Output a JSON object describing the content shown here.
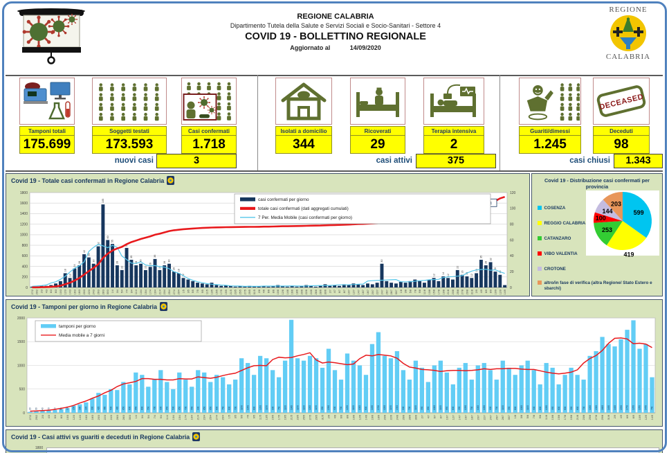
{
  "header": {
    "org": "REGIONE CALABRIA",
    "dept": "Dipartimento Tutela della Salute e Servizi Sociali e Socio-Sanitari - Settore 4",
    "title": "COVID 19 - BOLLETTINO REGIONALE",
    "updated_label": "Aggiornato al",
    "updated_date": "14/09/2020",
    "logo_top": "REGIONE",
    "logo_bottom": "CALABRIA"
  },
  "stats": {
    "items": [
      {
        "label": "Tamponi totali",
        "value": "175.699",
        "icon": "lab-equipment-icon"
      },
      {
        "label": "Soggetti testati",
        "value": "173.593",
        "icon": "crowd-icon"
      },
      {
        "label": "Casi confermati",
        "value": "1.718",
        "icon": "infected-person-icon"
      },
      {
        "label": "Isolati a domicilio",
        "value": "344",
        "icon": "house-icon"
      },
      {
        "label": "Ricoverati",
        "value": "29",
        "icon": "hospital-bed-icon"
      },
      {
        "label": "Terapia intensiva",
        "value": "2",
        "icon": "icu-bed-icon"
      },
      {
        "label": "Guariti/dimessi",
        "value": "1.245",
        "icon": "recovered-person-icon"
      },
      {
        "label": "Deceduti",
        "value": "98",
        "icon": "deceased-stamp-icon"
      }
    ],
    "deceased_stamp_text": "DECEASED",
    "summary": {
      "nuovi_label": "nuovi casi",
      "nuovi_value": "3",
      "attivi_label": "casi attivi",
      "attivi_value": "375",
      "chiusi_label": "casi chiusi",
      "chiusi_value": "1.343"
    }
  },
  "chart1": {
    "title": "Covid 19 - Totale casi confermati in Regione Calabria",
    "legend": [
      {
        "label": "casi confermati per giorno",
        "type": "bar",
        "color": "#17375e"
      },
      {
        "label": "totale casi confermati (dati aggregati cumulati)",
        "type": "thick",
        "color": "#e8191c"
      },
      {
        "label": "7 Per. Media Mobile (casi confermati per giorno)",
        "type": "thin",
        "color": "#56c7ea"
      }
    ],
    "end_label": "1718"
  },
  "pie": {
    "title_line1": "Covid 19 - Distribuzione casi confermati per",
    "title_line2": "provincia",
    "legend": [
      {
        "label": "COSENZA",
        "color": "#00c5f0"
      },
      {
        "label": "REGGIO CALABRIA",
        "color": "#ffff00"
      },
      {
        "label": "CATANZARO",
        "color": "#33cc33"
      },
      {
        "label": "VIBO VALENTIA",
        "color": "#ff0000"
      },
      {
        "label": "CROTONE",
        "color": "#c4bce0"
      },
      {
        "label": "altro/in fase di verifica (altra Regione/ Stato Estero e sbarchi)",
        "color": "#e8965a"
      }
    ]
  },
  "chart2": {
    "title": "Covid 19 - Tamponi per giorno in Regione Calabria",
    "legend": [
      {
        "label": "tamponi per giorno",
        "type": "bar",
        "color": "#62cdf5"
      },
      {
        "label": "Media mobile a 7 giorni",
        "type": "thin",
        "color": "#e8191c"
      }
    ]
  },
  "chart3": {
    "title": "Covid 19 - Casi attivi vs guariti e deceduti in Regione Calabria",
    "visible_y_tick": "1800"
  },
  "chart_data": [
    {
      "id": "casi-confermati-combo",
      "type": "bar",
      "title": "Covid 19 - Totale casi confermati in Regione Calabria",
      "left_ylim": [
        0,
        1800
      ],
      "left_step": 200,
      "right_ylim": [
        0,
        120
      ],
      "right_step": 20,
      "grid": true,
      "legend_position": "top-center",
      "end_label": "1718",
      "ma_window": 7,
      "x": [
        "27/2",
        "29/2",
        "2/3",
        "4/3",
        "6/3",
        "8/3",
        "10/3",
        "12/3",
        "14/3",
        "16/3",
        "18/3",
        "20/3",
        "22/3",
        "24/3",
        "26/3",
        "28/3",
        "30/3",
        "1/4",
        "3/4",
        "5/4",
        "7/4",
        "9/4",
        "11/4",
        "13/4",
        "15/4",
        "17/4",
        "19/4",
        "21/4",
        "23/4",
        "25/4",
        "27/4",
        "29/4",
        "1/5",
        "3/5",
        "5/5",
        "7/5",
        "9/5",
        "11/5",
        "13/5",
        "15/5",
        "17/5",
        "19/5",
        "21/5",
        "23/5",
        "25/5",
        "27/5",
        "29/5",
        "31/5",
        "2/6",
        "4/6",
        "6/6",
        "8/6",
        "10/6",
        "12/6",
        "14/6",
        "16/6",
        "18/6",
        "20/6",
        "22/6",
        "24/6",
        "26/6",
        "28/6",
        "30/6",
        "2/7",
        "4/7",
        "6/7",
        "8/7",
        "10/7",
        "12/7",
        "14/7",
        "16/7",
        "18/7",
        "20/7",
        "22/7",
        "24/7",
        "26/7",
        "28/7",
        "30/7",
        "1/8",
        "3/8",
        "5/8",
        "7/8",
        "9/8",
        "11/8",
        "13/8",
        "15/8",
        "17/8",
        "19/8",
        "21/8",
        "23/8",
        "25/8",
        "27/8",
        "29/8",
        "31/8",
        "2/9",
        "4/9",
        "6/9",
        "8/9",
        "10/9",
        "12/9",
        "14/9"
      ],
      "series": [
        {
          "name": "casi confermati per giorno",
          "plot": "bar",
          "axis": "right",
          "values": [
            1,
            1,
            2,
            2,
            3,
            5,
            8,
            18,
            12,
            24,
            28,
            42,
            38,
            30,
            52,
            105,
            60,
            55,
            28,
            22,
            50,
            35,
            28,
            30,
            22,
            26,
            36,
            22,
            28,
            30,
            20,
            18,
            12,
            10,
            8,
            6,
            5,
            4,
            6,
            3,
            2,
            3,
            2,
            1,
            2,
            1,
            2,
            1,
            1,
            2,
            1,
            2,
            3,
            2,
            1,
            2,
            1,
            2,
            3,
            2,
            1,
            2,
            4,
            2,
            3,
            2,
            4,
            3,
            5,
            4,
            3,
            5,
            4,
            6,
            30,
            8,
            6,
            5,
            7,
            6,
            8,
            10,
            8,
            6,
            10,
            12,
            8,
            14,
            12,
            10,
            22,
            16,
            14,
            12,
            18,
            35,
            28,
            32,
            20,
            16,
            3
          ]
        },
        {
          "name": "totale casi confermati (dati aggregati cumulati)",
          "plot": "line",
          "axis": "left",
          "values": [
            2,
            3,
            5,
            8,
            12,
            20,
            33,
            60,
            90,
            130,
            180,
            245,
            310,
            370,
            440,
            560,
            640,
            700,
            740,
            770,
            820,
            860,
            890,
            920,
            945,
            970,
            1000,
            1020,
            1045,
            1070,
            1085,
            1095,
            1105,
            1112,
            1118,
            1124,
            1128,
            1132,
            1136,
            1139,
            1141,
            1143,
            1145,
            1146,
            1147,
            1148,
            1149,
            1150,
            1151,
            1153,
            1154,
            1156,
            1159,
            1161,
            1162,
            1164,
            1165,
            1167,
            1170,
            1172,
            1173,
            1175,
            1179,
            1181,
            1184,
            1186,
            1190,
            1193,
            1198,
            1202,
            1205,
            1210,
            1214,
            1220,
            1250,
            1258,
            1264,
            1269,
            1276,
            1282,
            1290,
            1300,
            1308,
            1314,
            1324,
            1336,
            1344,
            1358,
            1370,
            1380,
            1402,
            1418,
            1432,
            1444,
            1462,
            1497,
            1525,
            1557,
            1640,
            1690,
            1718
          ]
        },
        {
          "name": "7 Per. Media Mobile (casi confermati per giorno)",
          "plot": "line",
          "axis": "right",
          "derived": "moving-average-of-daily"
        }
      ]
    },
    {
      "id": "provincia-pie",
      "type": "pie",
      "title": "Covid 19 - Distribuzione casi confermati per provincia",
      "labels": [
        "COSENZA",
        "REGGIO CALABRIA",
        "CATANZARO",
        "VIBO VALENTIA",
        "CROTONE",
        "altro/in fase di verifica (altra Regione/ Stato Estero e sbarchi)"
      ],
      "values": [
        599,
        419,
        253,
        100,
        144,
        203
      ],
      "colors": [
        "#00c5f0",
        "#ffff00",
        "#33cc33",
        "#ff0000",
        "#c4bce0",
        "#e8965a"
      ],
      "total": 1718
    },
    {
      "id": "tamponi-per-giorno",
      "type": "bar",
      "title": "Covid 19 - Tamponi per giorno in Regione Calabria",
      "ylim": [
        0,
        2000
      ],
      "ystep": 500,
      "grid": true,
      "legend_position": "top-left",
      "ma_window": 7,
      "x": [
        "27/2",
        "29/2",
        "2/3",
        "4/3",
        "6/3",
        "8/3",
        "10/3",
        "12/3",
        "14/3",
        "16/3",
        "18/3",
        "20/3",
        "22/3",
        "24/3",
        "26/3",
        "28/3",
        "30/3",
        "1/4",
        "3/4",
        "5/4",
        "7/4",
        "9/4",
        "11/4",
        "13/4",
        "15/4",
        "17/4",
        "19/4",
        "21/4",
        "23/4",
        "25/4",
        "27/4",
        "29/4",
        "1/5",
        "3/5",
        "5/5",
        "7/5",
        "9/5",
        "11/5",
        "13/5",
        "15/5",
        "17/5",
        "19/5",
        "21/5",
        "23/5",
        "25/5",
        "27/5",
        "29/5",
        "31/5",
        "2/6",
        "4/6",
        "6/6",
        "8/6",
        "10/6",
        "12/6",
        "14/6",
        "16/6",
        "18/6",
        "20/6",
        "22/6",
        "24/6",
        "26/6",
        "28/6",
        "30/6",
        "2/7",
        "4/7",
        "6/7",
        "8/7",
        "10/7",
        "12/7",
        "14/7",
        "16/7",
        "18/7",
        "20/7",
        "22/7",
        "24/7",
        "26/7",
        "28/7",
        "30/7",
        "1/8",
        "3/8",
        "5/8",
        "7/8",
        "9/8",
        "11/8",
        "13/8",
        "15/8",
        "17/8",
        "19/8",
        "21/8",
        "23/8",
        "25/8",
        "27/8",
        "29/8",
        "31/8",
        "2/9",
        "4/9",
        "6/9",
        "8/9",
        "10/9",
        "12/9",
        "14/9"
      ],
      "series": [
        {
          "name": "tamponi per giorno",
          "plot": "bar",
          "values": [
            20,
            30,
            40,
            50,
            60,
            80,
            100,
            150,
            180,
            220,
            300,
            420,
            380,
            500,
            480,
            650,
            600,
            850,
            800,
            550,
            700,
            900,
            650,
            500,
            850,
            700,
            550,
            900,
            850,
            650,
            800,
            750,
            600,
            700,
            1150,
            1050,
            800,
            1200,
            1150,
            900,
            750,
            1100,
            1960,
            1150,
            1100,
            1200,
            1150,
            950,
            1350,
            900,
            700,
            1250,
            1100,
            1000,
            800,
            1450,
            1700,
            1200,
            1150,
            1300,
            900,
            700,
            1100,
            950,
            650,
            1000,
            1100,
            850,
            600,
            950,
            1050,
            700,
            1000,
            1050,
            900,
            700,
            1100,
            950,
            800,
            1000,
            1100,
            900,
            600,
            1050,
            950,
            600,
            800,
            950,
            800,
            700,
            1200,
            1300,
            1600,
            1450,
            1400,
            1550,
            1750,
            1950,
            1350,
            1450,
            750
          ]
        },
        {
          "name": "Media mobile a 7 giorni",
          "plot": "line",
          "derived": "moving-average-of-tamponi"
        }
      ]
    },
    {
      "id": "casi-attivi-vs-guariti",
      "type": "bar",
      "title": "Covid 19 - Casi attivi vs guariti e deceduti in Regione Calabria",
      "visible_y_tick": "1800"
    }
  ],
  "colors": {
    "page_border": "#4f81bd",
    "panel_bg": "#d8e4bc",
    "highlight_yellow": "#ffff00",
    "navy_text": "#17375e",
    "daily_bar": "#17375e",
    "cumulative_line": "#e8191c",
    "moving_avg_line": "#56c7ea",
    "tamponi_bar": "#62cdf5",
    "olive_icon": "#5f7030"
  }
}
